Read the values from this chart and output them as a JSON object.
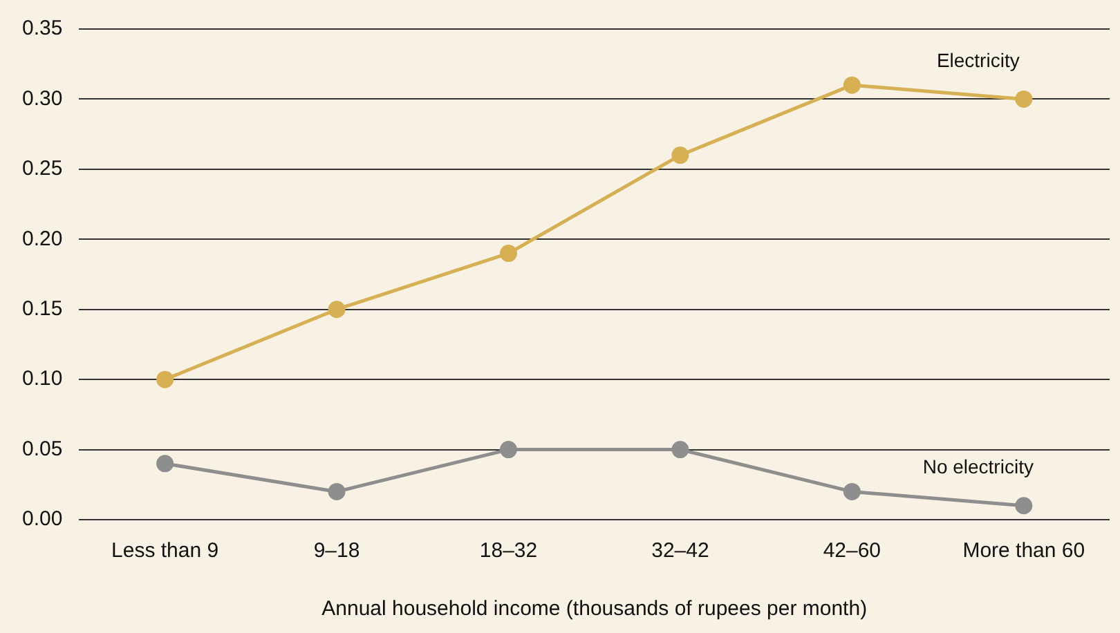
{
  "chart_data": {
    "type": "line",
    "xlabel": "Annual household income (thousands of rupees per month)",
    "categories": [
      "Less than 9",
      "9–18",
      "18–32",
      "32–42",
      "42–60",
      "More than 60"
    ],
    "series": [
      {
        "name": "Electricity",
        "color": "#d6b052",
        "values": [
          0.1,
          0.15,
          0.19,
          0.26,
          0.31,
          0.3
        ]
      },
      {
        "name": "No electricity",
        "color": "#8e8e8e",
        "values": [
          0.04,
          0.02,
          0.05,
          0.05,
          0.02,
          0.01
        ]
      }
    ],
    "ylim": [
      0,
      0.35
    ],
    "yticks": [
      {
        "value": 0,
        "label": "0.00"
      },
      {
        "value": 0.05,
        "label": "0.05"
      },
      {
        "value": 0.1,
        "label": "0.10"
      },
      {
        "value": 0.15,
        "label": "0.15"
      },
      {
        "value": 0.2,
        "label": "0.20"
      },
      {
        "value": 0.25,
        "label": "0.25"
      },
      {
        "value": 0.3,
        "label": "0.30"
      },
      {
        "value": 0.35,
        "label": "0.35"
      }
    ],
    "grid": "y",
    "legend": false,
    "marker": "circle",
    "line_style": "solid"
  }
}
